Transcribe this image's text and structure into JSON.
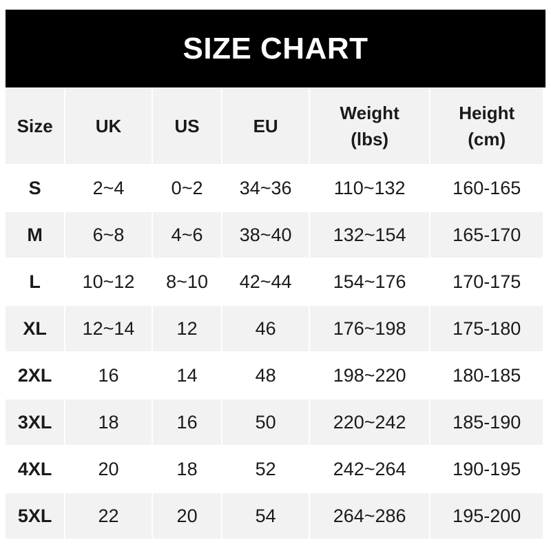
{
  "title": "SIZE CHART",
  "headers": [
    "Size",
    "UK",
    "US",
    "EU",
    "Weight\n(lbs)",
    "Height\n(cm)"
  ],
  "header_lines": [
    [
      "Size"
    ],
    [
      "UK"
    ],
    [
      "US"
    ],
    [
      "EU"
    ],
    [
      "Weight",
      "(lbs)"
    ],
    [
      "Height",
      "(cm)"
    ]
  ],
  "rows": [
    [
      "S",
      "2~4",
      "0~2",
      "34~36",
      "110~132",
      "160-165"
    ],
    [
      "M",
      "6~8",
      "4~6",
      "38~40",
      "132~154",
      "165-170"
    ],
    [
      "L",
      "10~12",
      "8~10",
      "42~44",
      "154~176",
      "170-175"
    ],
    [
      "XL",
      "12~14",
      "12",
      "46",
      "176~198",
      "175-180"
    ],
    [
      "2XL",
      "16",
      "14",
      "48",
      "198~220",
      "180-185"
    ],
    [
      "3XL",
      "18",
      "16",
      "50",
      "220~242",
      "185-190"
    ],
    [
      "4XL",
      "20",
      "18",
      "52",
      "242~264",
      "190-195"
    ],
    [
      "5XL",
      "22",
      "20",
      "54",
      "264~286",
      "195-200"
    ]
  ],
  "colors": {
    "title_bg": "#000000",
    "header_bg": "#f2f2f2",
    "stripe": "#f2f2f2",
    "text": "#1a1a1a"
  }
}
